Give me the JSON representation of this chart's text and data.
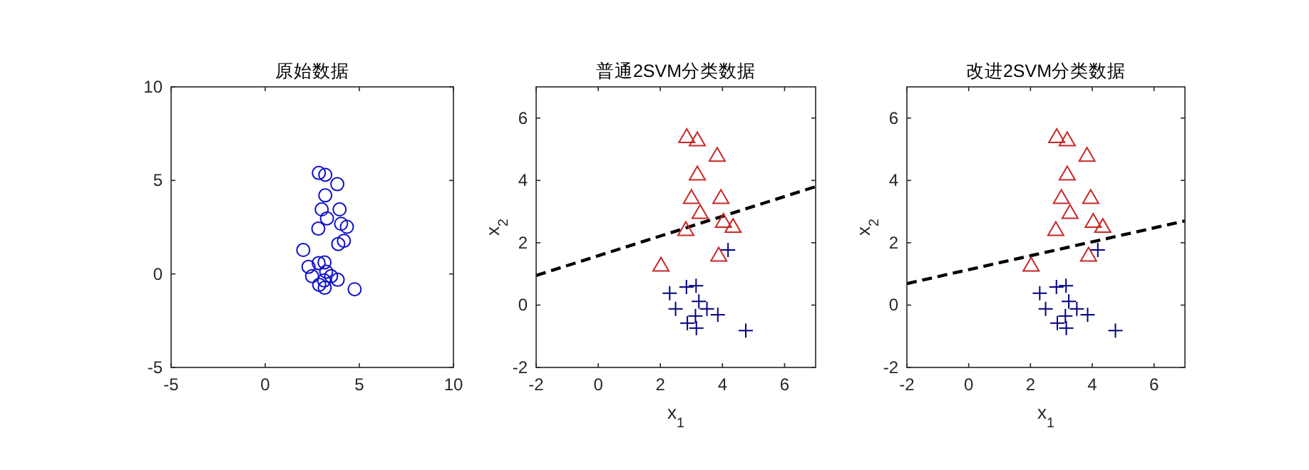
{
  "chart_data": [
    {
      "type": "scatter",
      "title": "原始数据",
      "xlim": [
        -5,
        10
      ],
      "ylim": [
        -5,
        10
      ],
      "xticks": [
        -5,
        0,
        5,
        10
      ],
      "yticks": [
        -5,
        0,
        5,
        10
      ],
      "series": [
        {
          "color": "#1010c8",
          "marker": "circle",
          "x": [
            2.85,
            3.19,
            3.83,
            3.19,
            3.0,
            3.95,
            3.28,
            4.03,
            4.34,
            2.82,
            3.88,
            2.02,
            4.18,
            2.3,
            2.49,
            2.84,
            3.15,
            3.24,
            3.13,
            3.5,
            3.85,
            2.87,
            3.16,
            4.75
          ],
          "values": [
            5.4,
            5.3,
            4.8,
            4.2,
            3.45,
            3.45,
            2.97,
            2.68,
            2.52,
            2.42,
            1.6,
            1.28,
            1.77,
            0.38,
            -0.12,
            0.58,
            0.62,
            0.12,
            -0.35,
            -0.12,
            -0.31,
            -0.58,
            -0.74,
            -0.82
          ]
        }
      ]
    },
    {
      "type": "scatter",
      "title": "普通2SVM分类数据",
      "xlabel": "x$_{1}$",
      "ylabel": "x$_{2}$",
      "xlim": [
        -2,
        7
      ],
      "ylim": [
        -2,
        7
      ],
      "xticks": [
        -2,
        0,
        2,
        4,
        6
      ],
      "yticks": [
        -2,
        0,
        2,
        4,
        6
      ],
      "series": [
        {
          "color": "#c82828",
          "marker": "triangle",
          "x": [
            2.85,
            3.19,
            3.83,
            3.19,
            3.0,
            3.95,
            3.28,
            4.03,
            4.34,
            2.82,
            3.88,
            2.02
          ],
          "values": [
            5.4,
            5.3,
            4.8,
            4.2,
            3.45,
            3.45,
            2.97,
            2.68,
            2.52,
            2.42,
            1.6,
            1.28
          ]
        },
        {
          "color": "#00007f",
          "marker": "cross",
          "x": [
            4.18,
            2.3,
            2.49,
            2.84,
            3.15,
            3.24,
            3.13,
            3.5,
            3.85,
            2.87,
            3.16,
            4.75
          ],
          "values": [
            1.77,
            0.38,
            -0.12,
            0.58,
            0.62,
            0.12,
            -0.35,
            -0.12,
            -0.31,
            -0.58,
            -0.74,
            -0.82
          ]
        },
        {
          "type": "line",
          "color": "#000000",
          "line_style": "dashed",
          "marker": "none",
          "x": [
            -2,
            7
          ],
          "values": [
            0.95,
            3.8
          ]
        }
      ]
    },
    {
      "type": "scatter",
      "title": "改进2SVM分类数据",
      "xlabel": "x$_{1}$",
      "ylabel": "x$_{2}$",
      "xlim": [
        -2,
        7
      ],
      "ylim": [
        -2,
        7
      ],
      "xticks": [
        -2,
        0,
        2,
        4,
        6
      ],
      "yticks": [
        -2,
        0,
        2,
        4,
        6
      ],
      "series": [
        {
          "color": "#c82828",
          "marker": "triangle",
          "x": [
            2.85,
            3.19,
            3.83,
            3.19,
            3.0,
            3.95,
            3.28,
            4.03,
            4.34,
            2.82,
            3.88,
            2.02
          ],
          "values": [
            5.4,
            5.3,
            4.8,
            4.2,
            3.45,
            3.45,
            2.97,
            2.68,
            2.52,
            2.42,
            1.6,
            1.28
          ]
        },
        {
          "color": "#00007f",
          "marker": "cross",
          "x": [
            4.18,
            2.3,
            2.49,
            2.84,
            3.15,
            3.24,
            3.13,
            3.5,
            3.85,
            2.87,
            3.16,
            4.75
          ],
          "values": [
            1.77,
            0.38,
            -0.12,
            0.58,
            0.62,
            0.12,
            -0.35,
            -0.12,
            -0.31,
            -0.58,
            -0.74,
            -0.82
          ]
        },
        {
          "type": "line",
          "color": "#000000",
          "line_style": "dashed",
          "marker": "none",
          "x": [
            -2,
            7
          ],
          "values": [
            0.69,
            2.7
          ]
        }
      ]
    }
  ]
}
